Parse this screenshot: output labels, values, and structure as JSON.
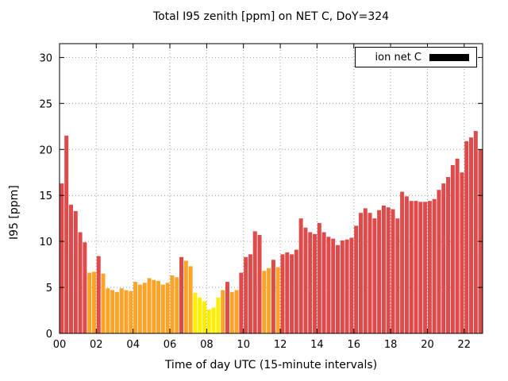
{
  "chart_data": {
    "type": "bar",
    "title": "Total I95 zenith [ppm] on NET C, DoY=324",
    "xlabel": "Time of day UTC (15-minute intervals)",
    "ylabel": "I95 [ppm]",
    "series_name": "ion net C",
    "xlim": [
      0,
      23
    ],
    "ylim": [
      0,
      31.5
    ],
    "grid": "dotted",
    "legend_position": "top-right-inside",
    "x_ticks": [
      {
        "value": 0,
        "label": "00"
      },
      {
        "value": 2,
        "label": "02"
      },
      {
        "value": 4,
        "label": "04"
      },
      {
        "value": 6,
        "label": "06"
      },
      {
        "value": 8,
        "label": "08"
      },
      {
        "value": 10,
        "label": "10"
      },
      {
        "value": 12,
        "label": "12"
      },
      {
        "value": 14,
        "label": "14"
      },
      {
        "value": 16,
        "label": "16"
      },
      {
        "value": 18,
        "label": "18"
      },
      {
        "value": 20,
        "label": "20"
      },
      {
        "value": 22,
        "label": "22"
      }
    ],
    "y_ticks": [
      0,
      5,
      10,
      15,
      20,
      25,
      30
    ],
    "start_time": "00:00",
    "interval_minutes": 15,
    "palette": {
      "red": "#dd4b4b",
      "orange": "#ffa428",
      "yellow": "#ffee00",
      "legend_sample": "#000000"
    },
    "values": [
      16.3,
      21.5,
      14.0,
      13.3,
      11.0,
      9.9,
      6.6,
      6.7,
      8.4,
      6.5,
      4.9,
      4.7,
      4.5,
      4.9,
      4.7,
      4.6,
      5.6,
      5.3,
      5.5,
      6.0,
      5.8,
      5.7,
      5.3,
      5.5,
      6.3,
      6.1,
      8.3,
      7.9,
      7.3,
      4.4,
      3.9,
      3.5,
      2.6,
      2.8,
      3.9,
      4.7,
      5.6,
      4.5,
      4.7,
      6.6,
      8.3,
      8.6,
      11.1,
      10.7,
      6.8,
      7.1,
      8.0,
      7.2,
      8.6,
      8.8,
      8.6,
      9.1,
      12.5,
      11.5,
      11.0,
      10.8,
      12.0,
      11.0,
      10.5,
      10.3,
      9.6,
      10.1,
      10.2,
      10.4,
      11.7,
      13.1,
      13.6,
      13.1,
      12.5,
      13.4,
      13.9,
      13.7,
      13.5,
      12.5,
      15.4,
      14.9,
      14.4,
      14.4,
      14.3,
      14.3,
      14.4,
      14.6,
      15.6,
      16.3,
      17.0,
      18.3,
      19.0,
      17.5,
      20.9,
      21.3,
      22.0,
      20.0
    ],
    "colors": [
      "red",
      "red",
      "red",
      "red",
      "red",
      "red",
      "orange",
      "orange",
      "red",
      "orange",
      "orange",
      "orange",
      "orange",
      "orange",
      "orange",
      "orange",
      "orange",
      "orange",
      "orange",
      "orange",
      "orange",
      "orange",
      "orange",
      "orange",
      "orange",
      "orange",
      "red",
      "orange",
      "orange",
      "yellow",
      "yellow",
      "yellow",
      "yellow",
      "yellow",
      "yellow",
      "orange",
      "red",
      "orange",
      "orange",
      "red",
      "red",
      "red",
      "red",
      "red",
      "orange",
      "orange",
      "red",
      "orange",
      "red",
      "red",
      "red",
      "red",
      "red",
      "red",
      "red",
      "red",
      "red",
      "red",
      "red",
      "red",
      "red",
      "red",
      "red",
      "red",
      "red",
      "red",
      "red",
      "red",
      "red",
      "red",
      "red",
      "red",
      "red",
      "red",
      "red",
      "red",
      "red",
      "red",
      "red",
      "red",
      "red",
      "red",
      "red",
      "red",
      "red",
      "red",
      "red",
      "red",
      "red",
      "red",
      "red",
      "red"
    ]
  }
}
